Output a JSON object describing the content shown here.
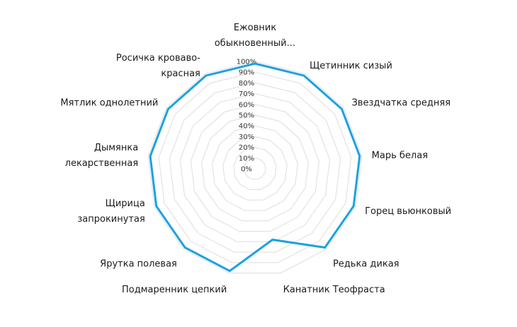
{
  "chart_data": {
    "type": "radar",
    "title": "",
    "categories": [
      "Ежовник обыкновенный...",
      "Щетинник сизый",
      "Звездчатка средняя",
      "Марь белая",
      "Горец вьюнковый",
      "Редька дикая",
      "Канатник Теофраста",
      "Подмаренник цепкий",
      "Ярутка полевая",
      "Щирица запрокинутая",
      "Дымянка лекарственная",
      "Мятлик однолетний",
      "Росичка кроваво-красная"
    ],
    "series": [
      {
        "values": [
          98,
          98,
          98,
          98,
          98,
          98,
          68,
          98,
          98,
          98,
          98,
          98,
          98
        ]
      }
    ],
    "rlim": [
      0,
      100
    ],
    "ticks": [
      "0%",
      "10%",
      "20%",
      "30%",
      "40%",
      "50%",
      "60%",
      "70%",
      "80%",
      "90%",
      "100%"
    ],
    "grid": true,
    "legend": "none",
    "colors": {
      "series": "#1ba1e2",
      "grid": "#dddddd",
      "text": "#1a1a1a"
    }
  }
}
